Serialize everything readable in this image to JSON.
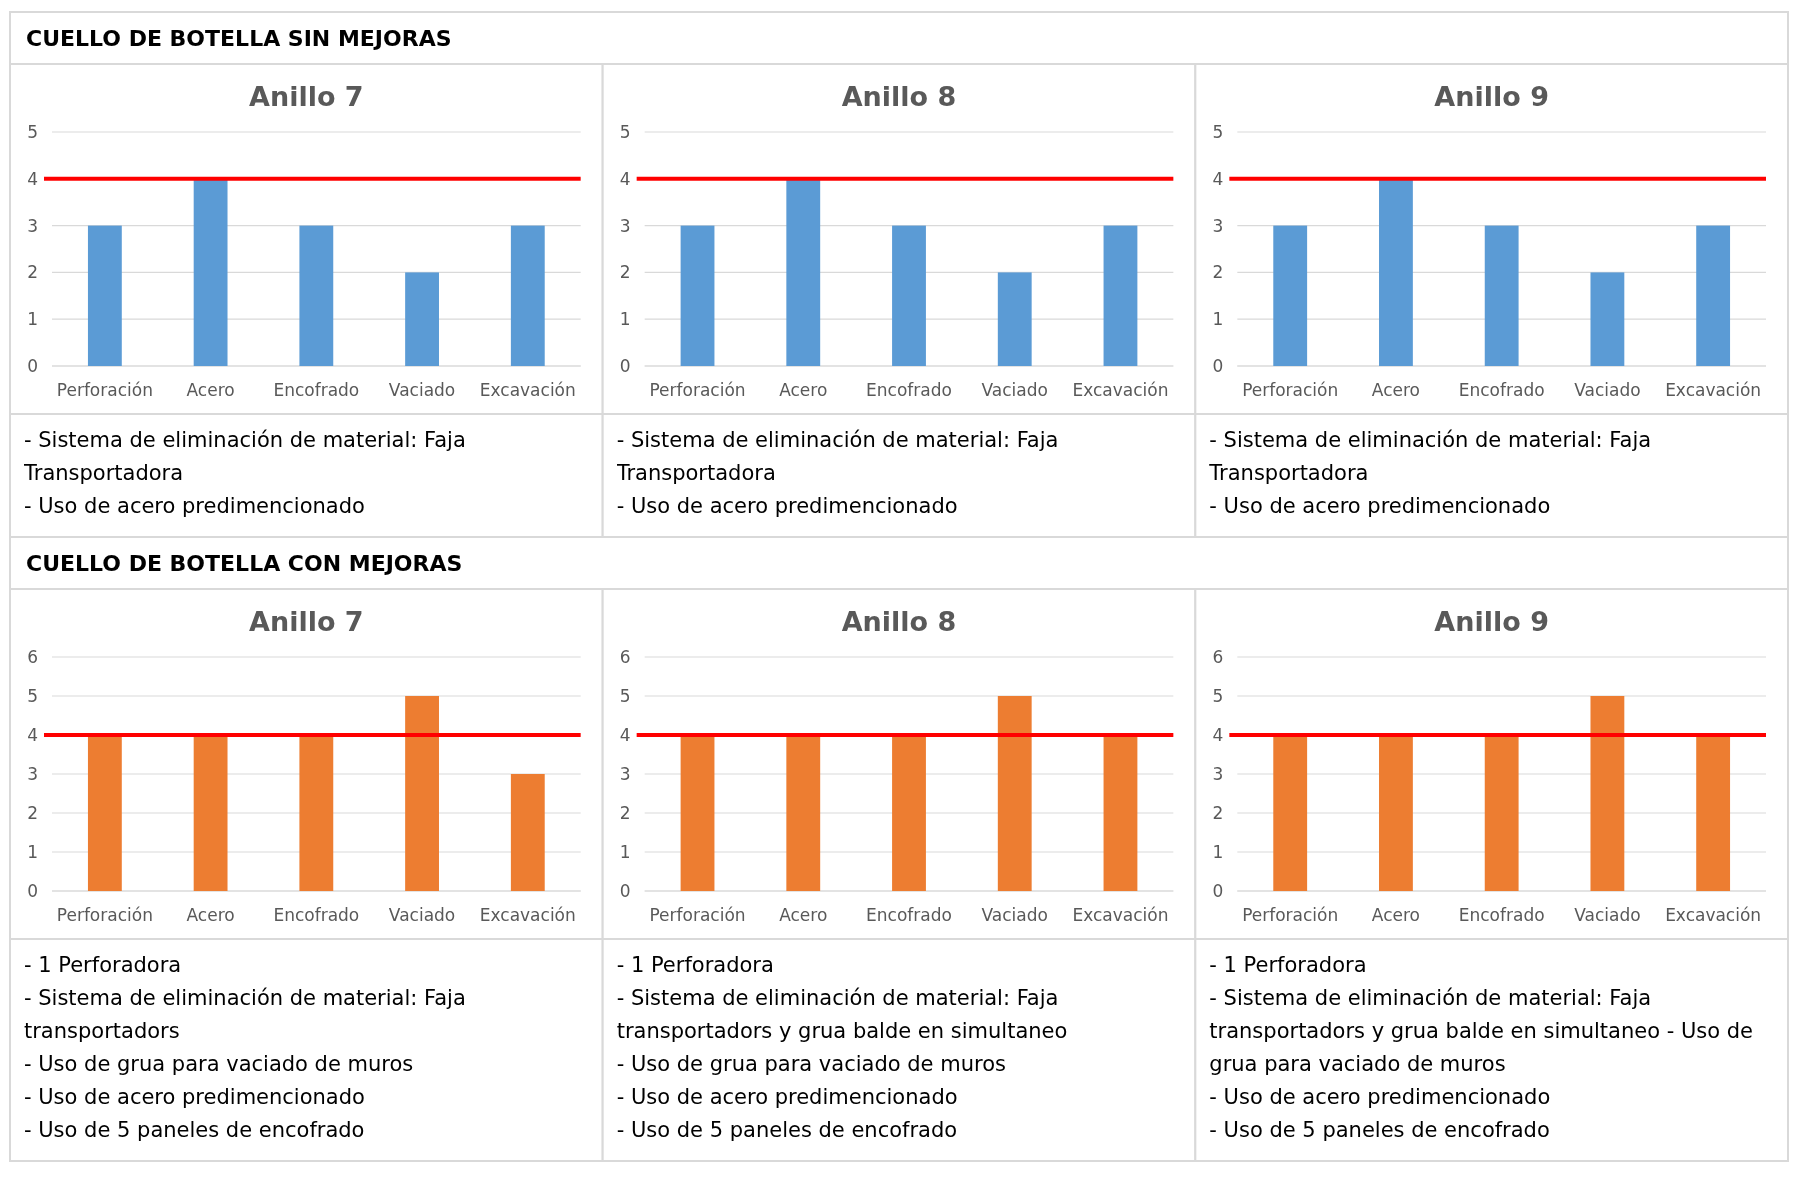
{
  "chart_data": [
    {
      "type": "other",
      "title": "CUELLO DE BOTELLA SIN MEJORAS"
    },
    {
      "type": "bar",
      "title": "Anillo 7",
      "categories": [
        "Perforación",
        "Acero",
        "Encofrado",
        "Vaciado",
        "Excavación"
      ],
      "values": [
        3,
        4,
        3,
        2,
        3
      ],
      "color": "#5b9bd5",
      "ylim": [
        0,
        5
      ],
      "yticks": [
        0,
        1,
        2,
        3,
        4,
        5
      ],
      "grid": "y",
      "ref_lines": [
        {
          "axis": "y",
          "value": 4,
          "color": "#ff0000"
        }
      ],
      "annotations": [
        "- Sistema de eliminación de material: Faja Transportadora",
        "- Uso de acero predimencionado"
      ]
    },
    {
      "type": "bar",
      "title": "Anillo 8",
      "categories": [
        "Perforación",
        "Acero",
        "Encofrado",
        "Vaciado",
        "Excavación"
      ],
      "values": [
        3,
        4,
        3,
        2,
        3
      ],
      "color": "#5b9bd5",
      "ylim": [
        0,
        5
      ],
      "yticks": [
        0,
        1,
        2,
        3,
        4,
        5
      ],
      "grid": "y",
      "ref_lines": [
        {
          "axis": "y",
          "value": 4,
          "color": "#ff0000"
        }
      ],
      "annotations": [
        "- Sistema de eliminación de material: Faja Transportadora",
        "- Uso de acero predimencionado"
      ]
    },
    {
      "type": "bar",
      "title": "Anillo 9",
      "categories": [
        "Perforación",
        "Acero",
        "Encofrado",
        "Vaciado",
        "Excavación"
      ],
      "values": [
        3,
        4,
        3,
        2,
        3
      ],
      "color": "#5b9bd5",
      "ylim": [
        0,
        5
      ],
      "yticks": [
        0,
        1,
        2,
        3,
        4,
        5
      ],
      "grid": "y",
      "ref_lines": [
        {
          "axis": "y",
          "value": 4,
          "color": "#ff0000"
        }
      ],
      "annotations": [
        "- Sistema de eliminación de material: Faja Transportadora",
        "- Uso de acero predimencionado"
      ]
    },
    {
      "type": "other",
      "title": "CUELLO DE BOTELLA CON MEJORAS"
    },
    {
      "type": "bar",
      "title": "Anillo 7",
      "categories": [
        "Perforación",
        "Acero",
        "Encofrado",
        "Vaciado",
        "Excavación"
      ],
      "values": [
        4,
        4,
        4,
        5,
        3
      ],
      "color": "#ed7d31",
      "ylim": [
        0,
        6
      ],
      "yticks": [
        0,
        1,
        2,
        3,
        4,
        5,
        6
      ],
      "grid": "y",
      "ref_lines": [
        {
          "axis": "y",
          "value": 4,
          "color": "#ff0000"
        }
      ],
      "annotations": [
        "- 1 Perforadora",
        "- Sistema de eliminación de material: Faja transportadors",
        "- Uso de grua  para vaciado de muros",
        "- Uso de acero predimencionado",
        "- Uso de 5 paneles de encofrado"
      ]
    },
    {
      "type": "bar",
      "title": "Anillo 8",
      "categories": [
        "Perforación",
        "Acero",
        "Encofrado",
        "Vaciado",
        "Excavación"
      ],
      "values": [
        4,
        4,
        4,
        5,
        4
      ],
      "color": "#ed7d31",
      "ylim": [
        0,
        6
      ],
      "yticks": [
        0,
        1,
        2,
        3,
        4,
        5,
        6
      ],
      "grid": "y",
      "ref_lines": [
        {
          "axis": "y",
          "value": 4,
          "color": "#ff0000"
        }
      ],
      "annotations": [
        "- 1 Perforadora",
        "- Sistema de eliminación de material: Faja transportadors y grua balde en simultaneo",
        "- Uso de grua  para vaciado de muros",
        "- Uso de acero predimencionado",
        "- Uso de 5 paneles de encofrado"
      ]
    },
    {
      "type": "bar",
      "title": "Anillo 9",
      "categories": [
        "Perforación",
        "Acero",
        "Encofrado",
        "Vaciado",
        "Excavación"
      ],
      "values": [
        4,
        4,
        4,
        5,
        4
      ],
      "color": "#ed7d31",
      "ylim": [
        0,
        6
      ],
      "yticks": [
        0,
        1,
        2,
        3,
        4,
        5,
        6
      ],
      "grid": "y",
      "ref_lines": [
        {
          "axis": "y",
          "value": 4,
          "color": "#ff0000"
        }
      ],
      "annotations": [
        "- 1 Perforadora",
        "- Sistema de eliminación de material: Faja transportadors y grua balde en simultaneo - Uso de grua  para vaciado de muros",
        "- Uso de acero predimencionado",
        "- Uso de 5 paneles de encofrado"
      ]
    }
  ]
}
